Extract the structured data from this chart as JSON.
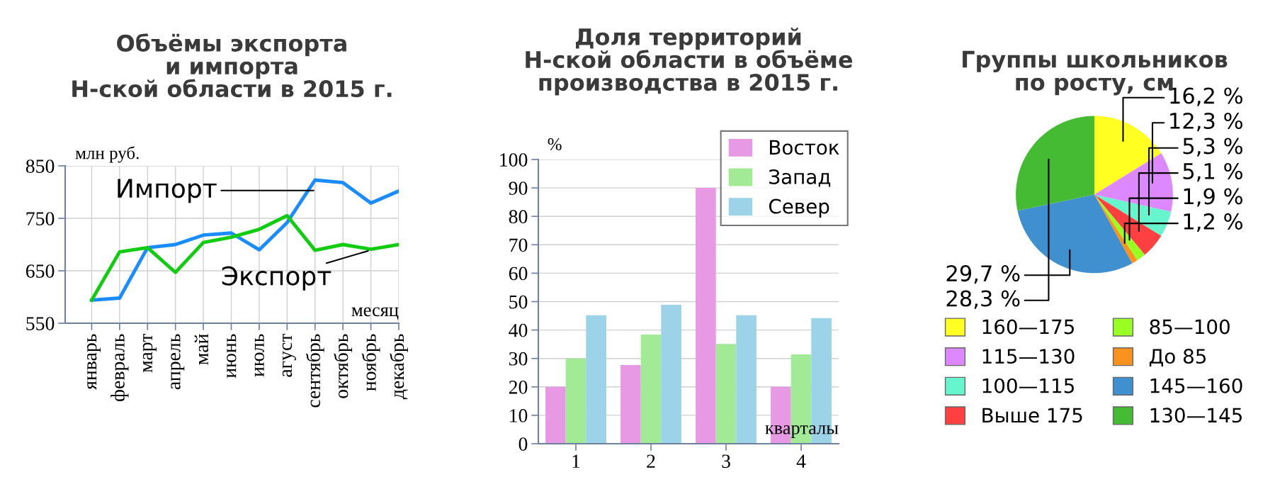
{
  "chart_data": [
    {
      "type": "line",
      "title": "Объёмы экспорта\nи импорта\nН-ской области в 2015 г.",
      "ylabel": "млн руб.",
      "xlabel": "месяц",
      "categories": [
        "январь",
        "февраль",
        "март",
        "апрель",
        "май",
        "июнь",
        "июль",
        "агуст",
        "сентябрь",
        "октябрь",
        "ноябрь",
        "декабрь"
      ],
      "series": [
        {
          "name": "Импорт",
          "color": "#1a8cff",
          "values": [
            594,
            598,
            694,
            700,
            718,
            722,
            690,
            742,
            823,
            818,
            779,
            802
          ]
        },
        {
          "name": "Экспорт",
          "color": "#12cc12",
          "values": [
            594,
            686,
            694,
            647,
            704,
            714,
            729,
            755,
            689,
            700,
            691,
            700
          ]
        }
      ],
      "ylim": [
        550,
        850
      ],
      "yticks": [
        550,
        650,
        750,
        850
      ],
      "grid": true,
      "legend": false,
      "marker": "none",
      "line_style": "solid"
    },
    {
      "type": "bar",
      "title": "Доля территорий\nН-ской области в объёме\nпроизводства в 2015 г.",
      "ylabel": "%",
      "xlabel": "кварталы",
      "categories": [
        "1",
        "2",
        "3",
        "4"
      ],
      "series": [
        {
          "name": "Восток",
          "color": "#e899e4",
          "values": [
            20,
            27.7,
            90,
            20
          ]
        },
        {
          "name": "Запад",
          "color": "#a2ea96",
          "values": [
            30,
            38.4,
            35.1,
            31.4
          ]
        },
        {
          "name": "Север",
          "color": "#9cd3e8",
          "values": [
            45.2,
            48.9,
            45.2,
            44.2
          ]
        }
      ],
      "ylim": [
        0,
        100
      ],
      "yticks": [
        0,
        10,
        20,
        30,
        40,
        50,
        60,
        70,
        80,
        90,
        100
      ],
      "grid": "y",
      "legend": "top right"
    },
    {
      "type": "pie",
      "title": "Группы школьников\nпо росту, см",
      "categories": [
        "160—175",
        "115—130",
        "100—115",
        "Выше 175",
        "85—100",
        "До 85",
        "145—160",
        "130—145"
      ],
      "values": [
        16.2,
        12.3,
        5.3,
        5.1,
        1.9,
        1.2,
        29.7,
        28.3
      ],
      "value_labels": [
        "16,2 %",
        "12,3 %",
        "5,3 %",
        "5,1 %",
        "1,9 %",
        "1,2 %",
        "29,7 %",
        "28,3 %"
      ],
      "colors": [
        "#ffff22",
        "#dd88ff",
        "#66f5cc",
        "#ff4040",
        "#99ff22",
        "#f7931e",
        "#4090d0",
        "#44bb33"
      ],
      "legend": "bottom"
    }
  ]
}
